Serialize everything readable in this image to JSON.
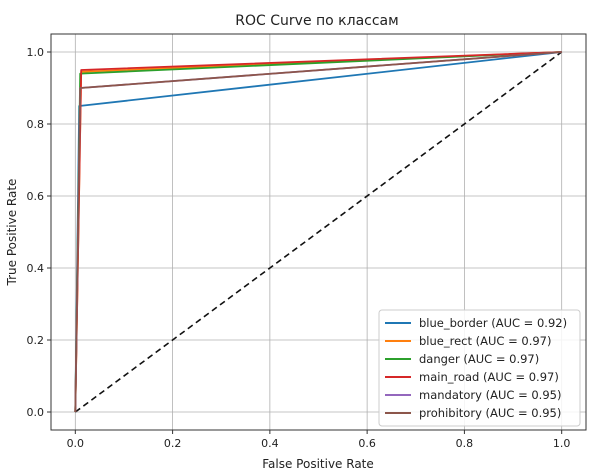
{
  "chart_data": {
    "type": "line",
    "title": "ROC Curve по классам",
    "xlabel": "False Positive Rate",
    "ylabel": "True Positive Rate",
    "xlim": [
      -0.05,
      1.05
    ],
    "ylim": [
      -0.05,
      1.05
    ],
    "xticks": [
      "0.0",
      "0.2",
      "0.4",
      "0.6",
      "0.8",
      "1.0"
    ],
    "yticks": [
      "0.0",
      "0.2",
      "0.4",
      "0.6",
      "0.8",
      "1.0"
    ],
    "grid": true,
    "legend_position": "lower-right",
    "diagonal": {
      "style": "dashed",
      "color": "#111111",
      "x": [
        0,
        1
      ],
      "y": [
        0,
        1
      ]
    },
    "series": [
      {
        "name": "blue_border (AUC = 0.92)",
        "color": "#1f77b4",
        "x": [
          0,
          0.008,
          1.0
        ],
        "y": [
          0,
          0.85,
          1.0
        ]
      },
      {
        "name": "blue_rect (AUC = 0.97)",
        "color": "#ff7f0e",
        "x": [
          0,
          0.012,
          1.0
        ],
        "y": [
          0,
          0.945,
          1.0
        ]
      },
      {
        "name": "danger (AUC = 0.97)",
        "color": "#2ca02c",
        "x": [
          0,
          0.01,
          1.0
        ],
        "y": [
          0,
          0.94,
          1.0
        ]
      },
      {
        "name": "main_road (AUC = 0.97)",
        "color": "#d62728",
        "x": [
          0,
          0.012,
          1.0
        ],
        "y": [
          0,
          0.95,
          1.0
        ]
      },
      {
        "name": "mandatory (AUC = 0.95)",
        "color": "#9467bd",
        "x": [
          0,
          0.01,
          1.0
        ],
        "y": [
          0,
          0.9,
          1.0
        ]
      },
      {
        "name": "prohibitory (AUC = 0.95)",
        "color": "#8c564b",
        "x": [
          0,
          0.01,
          1.0
        ],
        "y": [
          0,
          0.9,
          1.0
        ]
      }
    ]
  }
}
